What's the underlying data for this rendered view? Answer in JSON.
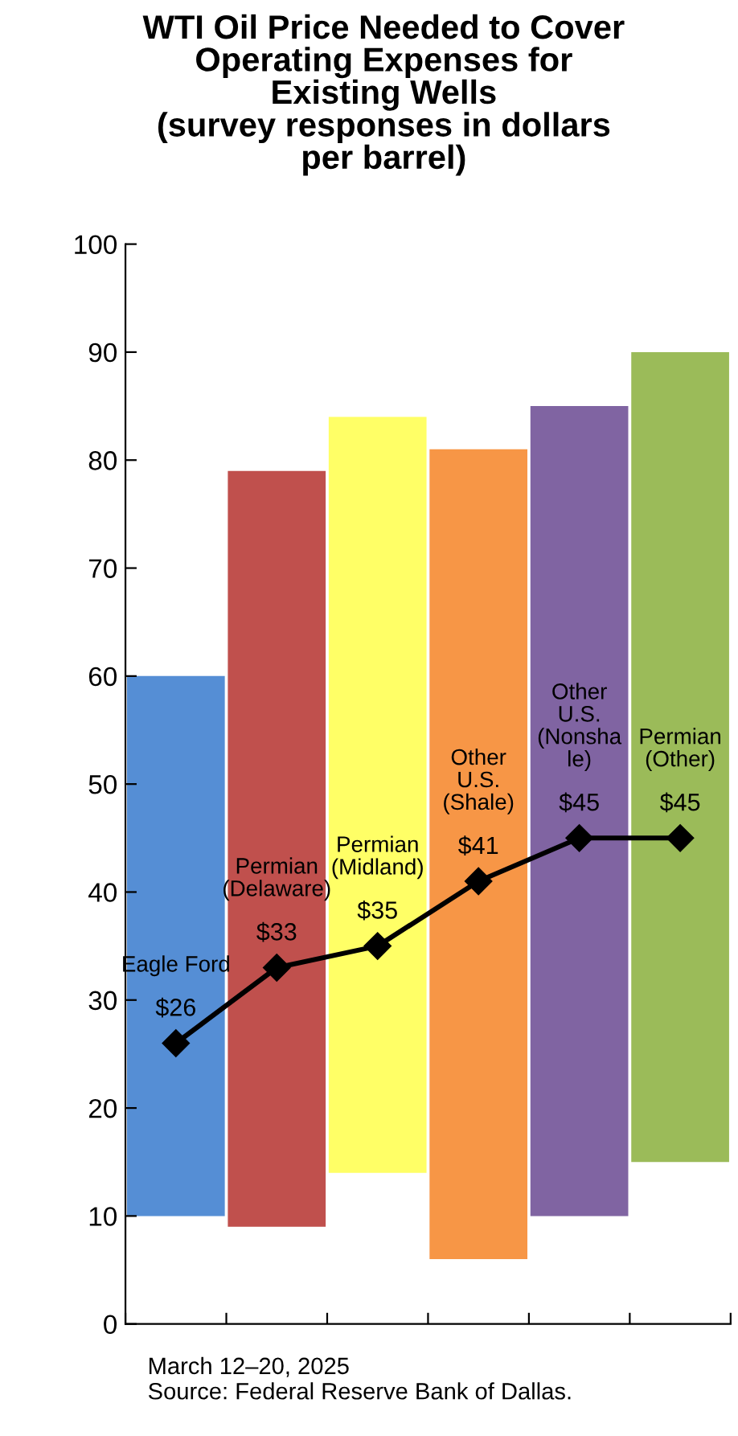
{
  "chart_data": {
    "type": "bar",
    "title": "WTI Oil Price Needed to Cover\nOperating Expenses for\nExisting Wells\n(survey responses in dollars\nper barrel)",
    "categories": [
      "Eagle Ford",
      "Permian\n(Delaware)",
      "Permian\n(Midland)",
      "Other\nU.S.\n(Shale)",
      "Other\nU.S.\n(Nonsha\nle)",
      "Permian\n(Other)"
    ],
    "series": [
      {
        "colors": [
          "#558ed5",
          "#c0504d",
          "#ffff66",
          "#f79646",
          "#8064a2",
          "#9bbb59"
        ],
        "base": [
          10,
          9,
          14,
          6,
          10,
          15
        ],
        "values": [
          50,
          70,
          70,
          75,
          75,
          75
        ]
      },
      {
        "type": "line",
        "color": "#000000",
        "marker": "diamond",
        "line_style": "solid",
        "values": [
          26,
          33,
          35,
          41,
          45,
          45
        ],
        "value_labels": [
          "$26",
          "$33",
          "$35",
          "$41",
          "$45",
          "$45"
        ]
      }
    ],
    "ylim": [
      0,
      100
    ],
    "yticks": [
      0,
      10,
      20,
      30,
      40,
      50,
      60,
      70,
      80,
      90,
      100
    ],
    "grid": false,
    "legend": false,
    "tick_labels": "y",
    "annotations": [
      "March 12–20, 2025\nSource: Federal Reserve Bank of Dallas."
    ]
  }
}
